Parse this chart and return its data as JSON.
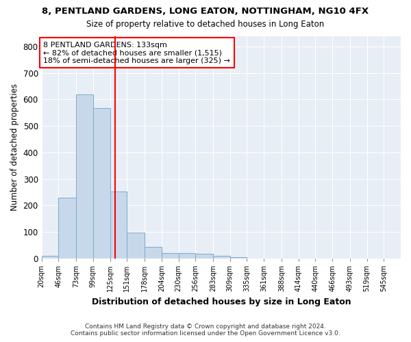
{
  "title": "8, PENTLAND GARDENS, LONG EATON, NOTTINGHAM, NG10 4FX",
  "subtitle": "Size of property relative to detached houses in Long Eaton",
  "xlabel": "Distribution of detached houses by size in Long Eaton",
  "ylabel": "Number of detached properties",
  "bar_heights": [
    10,
    228,
    620,
    568,
    252,
    97,
    44,
    20,
    20,
    18,
    9,
    5,
    0,
    0,
    0,
    0,
    0,
    0,
    0,
    0,
    0
  ],
  "bin_edges": [
    20,
    46,
    73,
    99,
    125,
    151,
    178,
    204,
    230,
    256,
    283,
    309,
    335,
    361,
    388,
    414,
    440,
    466,
    493,
    519,
    545,
    571
  ],
  "tick_labels": [
    "20sqm",
    "46sqm",
    "73sqm",
    "99sqm",
    "125sqm",
    "151sqm",
    "178sqm",
    "204sqm",
    "230sqm",
    "256sqm",
    "283sqm",
    "309sqm",
    "335sqm",
    "361sqm",
    "388sqm",
    "414sqm",
    "440sqm",
    "466sqm",
    "493sqm",
    "519sqm",
    "545sqm"
  ],
  "bar_color": "#c8d8eb",
  "bar_edge_color": "#7aaac8",
  "red_line_x": 133,
  "annotation_title": "8 PENTLAND GARDENS: 133sqm",
  "annotation_line1": "← 82% of detached houses are smaller (1,515)",
  "annotation_line2": "18% of semi-detached houses are larger (325) →",
  "ylim": [
    0,
    840
  ],
  "yticks": [
    0,
    100,
    200,
    300,
    400,
    500,
    600,
    700,
    800
  ],
  "footer_line1": "Contains HM Land Registry data © Crown copyright and database right 2024.",
  "footer_line2": "Contains public sector information licensed under the Open Government Licence v3.0.",
  "background_color": "#ffffff",
  "plot_bg_color": "#e8eef5",
  "grid_color": "#ffffff"
}
